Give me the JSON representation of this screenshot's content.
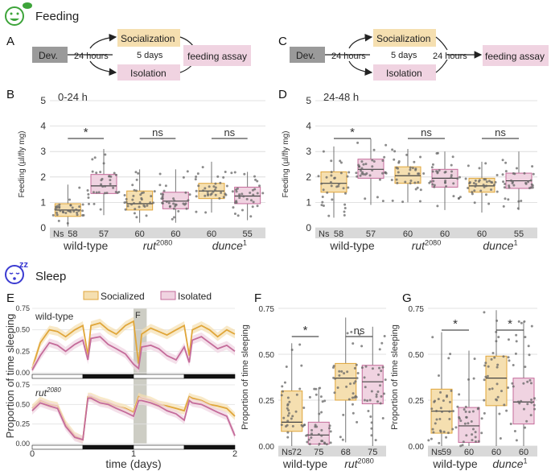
{
  "sections": {
    "feeding": "Feeding",
    "sleep": "Sleep"
  },
  "panels": {
    "A": "A",
    "B": "B",
    "C": "C",
    "D": "D",
    "E": "E",
    "F": "F",
    "G": "G"
  },
  "colors": {
    "socialized_fill": "#f5dfb0",
    "socialized_line": "#e0a63a",
    "isolated_fill": "#f0d3e1",
    "isolated_line": "#c46b9a",
    "dev_box": "#9a9a9a",
    "grey_band": "#d9d9d9"
  },
  "flow_A": {
    "dev": "Dev.",
    "socialization": "Socialization",
    "isolation": "Isolation",
    "hours": "24 hours",
    "days": "5 days",
    "assay": "feeding assay"
  },
  "flow_C": {
    "dev": "Dev.",
    "socialization": "Socialization",
    "isolation": "Isolation",
    "hours1": "24 hours",
    "days": "5 days",
    "hours2": "24 hours",
    "assay": "feeding assay"
  },
  "legend_E": {
    "socialized": "Socialized",
    "isolated": "Isolated"
  },
  "chart_data": [
    {
      "id": "B",
      "type": "box",
      "title": "0-24 h",
      "ylabel": "Feeding (µl/fly mg)",
      "ylim": [
        0,
        5
      ],
      "yticks": [
        "0",
        "1",
        "2",
        "3",
        "4",
        "5"
      ],
      "groups": [
        "wild-type",
        "rut",
        "dunce"
      ],
      "group_sup": [
        "",
        "2080",
        "1"
      ],
      "n_label": "Ns",
      "n": [
        58,
        57,
        60,
        60,
        60,
        55
      ],
      "boxes": [
        {
          "cond": "socialized",
          "q1": 0.45,
          "med": 0.7,
          "q3": 0.95,
          "lo": 0.05,
          "hi": 1.7
        },
        {
          "cond": "isolated",
          "q1": 1.35,
          "med": 1.65,
          "q3": 2.1,
          "lo": 0.5,
          "hi": 3.1
        },
        {
          "cond": "socialized",
          "q1": 0.7,
          "med": 0.95,
          "q3": 1.45,
          "lo": 0.2,
          "hi": 2.3
        },
        {
          "cond": "isolated",
          "q1": 0.75,
          "med": 1.05,
          "q3": 1.4,
          "lo": 0.2,
          "hi": 2.3
        },
        {
          "cond": "socialized",
          "q1": 1.15,
          "med": 1.45,
          "q3": 1.75,
          "lo": 0.6,
          "hi": 2.6
        },
        {
          "cond": "isolated",
          "q1": 0.95,
          "med": 1.25,
          "q3": 1.6,
          "lo": 0.3,
          "hi": 2.2
        }
      ],
      "sig": [
        "*",
        "ns",
        "ns"
      ]
    },
    {
      "id": "D",
      "type": "box",
      "title": "24-48 h",
      "ylabel": "Feeding (µl/fly mg)",
      "ylim": [
        0,
        5
      ],
      "yticks": [
        "0",
        "1",
        "2",
        "3",
        "4",
        "5"
      ],
      "groups": [
        "wild-type",
        "rut",
        "dunce"
      ],
      "group_sup": [
        "",
        "2080",
        "1"
      ],
      "n_label": "Ns",
      "n": [
        58,
        57,
        60,
        60,
        60,
        55
      ],
      "boxes": [
        {
          "cond": "socialized",
          "q1": 1.4,
          "med": 1.75,
          "q3": 2.2,
          "lo": 0.4,
          "hi": 3.2
        },
        {
          "cond": "isolated",
          "q1": 1.95,
          "med": 2.3,
          "q3": 2.7,
          "lo": 0.9,
          "hi": 3.5
        },
        {
          "cond": "socialized",
          "q1": 1.75,
          "med": 2.05,
          "q3": 2.4,
          "lo": 1.0,
          "hi": 3.1
        },
        {
          "cond": "isolated",
          "q1": 1.6,
          "med": 1.95,
          "q3": 2.3,
          "lo": 0.7,
          "hi": 3.0
        },
        {
          "cond": "socialized",
          "q1": 1.4,
          "med": 1.65,
          "q3": 1.95,
          "lo": 0.6,
          "hi": 2.6
        },
        {
          "cond": "isolated",
          "q1": 1.55,
          "med": 1.85,
          "q3": 2.15,
          "lo": 0.7,
          "hi": 3.0
        }
      ],
      "sig": [
        "*",
        "ns",
        "ns"
      ]
    },
    {
      "id": "E",
      "type": "line",
      "ylabel": "Proportion of time sleeping",
      "xlabel": "time (days)",
      "xlim": [
        0,
        2
      ],
      "xticks": [
        "0",
        "1",
        "2"
      ],
      "ylim": [
        0,
        0.75
      ],
      "yticks": [
        "0.00",
        "0.25",
        "0.50",
        "0.75"
      ],
      "highlight_label": "F",
      "highlight_x": [
        1.0,
        1.13
      ],
      "panels": [
        {
          "label": "wild-type",
          "sup": "",
          "x": [
            0,
            0.08,
            0.17,
            0.25,
            0.33,
            0.42,
            0.5,
            0.55,
            0.58,
            0.67,
            0.75,
            0.83,
            0.92,
            1.0,
            1.05,
            1.08,
            1.17,
            1.25,
            1.33,
            1.42,
            1.5,
            1.55,
            1.58,
            1.67,
            1.75,
            1.83,
            1.92,
            2.0
          ],
          "series": [
            {
              "name": "Socialized",
              "values": [
                0.05,
                0.35,
                0.5,
                0.48,
                0.42,
                0.5,
                0.55,
                0.2,
                0.55,
                0.58,
                0.5,
                0.45,
                0.55,
                0.6,
                0.1,
                0.45,
                0.52,
                0.48,
                0.44,
                0.5,
                0.55,
                0.2,
                0.5,
                0.55,
                0.5,
                0.42,
                0.5,
                0.45
              ]
            },
            {
              "name": "Isolated",
              "values": [
                0.03,
                0.2,
                0.35,
                0.32,
                0.25,
                0.33,
                0.38,
                0.15,
                0.4,
                0.42,
                0.33,
                0.28,
                0.22,
                0.1,
                0.05,
                0.3,
                0.32,
                0.28,
                0.2,
                0.15,
                0.3,
                0.12,
                0.38,
                0.42,
                0.35,
                0.28,
                0.32,
                0.25
              ]
            }
          ]
        },
        {
          "label": "rut",
          "sup": "2080",
          "x": [
            0,
            0.08,
            0.17,
            0.25,
            0.33,
            0.42,
            0.5,
            0.55,
            0.58,
            0.67,
            0.75,
            0.83,
            0.92,
            1.0,
            1.05,
            1.08,
            1.17,
            1.25,
            1.33,
            1.42,
            1.5,
            1.55,
            1.58,
            1.67,
            1.75,
            1.83,
            1.92,
            2.0
          ],
          "series": [
            {
              "name": "Socialized",
              "values": [
                0.45,
                0.55,
                0.5,
                0.48,
                0.25,
                0.1,
                0.05,
                0.6,
                0.6,
                0.55,
                0.52,
                0.48,
                0.45,
                0.4,
                0.6,
                0.58,
                0.55,
                0.5,
                0.48,
                0.45,
                0.42,
                0.6,
                0.58,
                0.55,
                0.5,
                0.48,
                0.45,
                0.35
              ]
            },
            {
              "name": "Isolated",
              "values": [
                0.42,
                0.52,
                0.48,
                0.45,
                0.22,
                0.08,
                0.05,
                0.58,
                0.58,
                0.52,
                0.5,
                0.45,
                0.4,
                0.35,
                0.55,
                0.55,
                0.52,
                0.48,
                0.42,
                0.38,
                0.3,
                0.55,
                0.52,
                0.5,
                0.45,
                0.4,
                0.35,
                0.1
              ]
            }
          ]
        }
      ]
    },
    {
      "id": "F",
      "type": "box",
      "ylabel": "Proportion of time sleeping",
      "ylim": [
        0,
        0.75
      ],
      "yticks": [
        "0.00",
        "0.25",
        "0.50",
        "0.75"
      ],
      "groups": [
        "wild-type",
        "rut"
      ],
      "group_sup": [
        "",
        "2080"
      ],
      "n_label": "Ns",
      "n": [
        72,
        75,
        68,
        75
      ],
      "boxes": [
        {
          "cond": "socialized",
          "q1": 0.08,
          "med": 0.13,
          "q3": 0.3,
          "lo": 0.0,
          "hi": 0.56
        },
        {
          "cond": "isolated",
          "q1": 0.01,
          "med": 0.06,
          "q3": 0.13,
          "lo": 0.0,
          "hi": 0.32
        },
        {
          "cond": "socialized",
          "q1": 0.25,
          "med": 0.37,
          "q3": 0.45,
          "lo": 0.02,
          "hi": 0.7
        },
        {
          "cond": "isolated",
          "q1": 0.23,
          "med": 0.35,
          "q3": 0.44,
          "lo": 0.0,
          "hi": 0.65
        }
      ],
      "sig": [
        "*",
        "ns"
      ]
    },
    {
      "id": "G",
      "type": "box",
      "ylabel": "Proportion of time sleeping",
      "ylim": [
        0,
        0.75
      ],
      "yticks": [
        "0.00",
        "0.25",
        "0.50",
        "0.75"
      ],
      "groups": [
        "wild-type",
        "dunce"
      ],
      "group_sup": [
        "",
        "1"
      ],
      "n_label": "Ns",
      "n": [
        59,
        60,
        60,
        60
      ],
      "boxes": [
        {
          "cond": "socialized",
          "q1": 0.07,
          "med": 0.19,
          "q3": 0.31,
          "lo": 0.0,
          "hi": 0.62
        },
        {
          "cond": "isolated",
          "q1": 0.02,
          "med": 0.11,
          "q3": 0.21,
          "lo": 0.0,
          "hi": 0.52
        },
        {
          "cond": "socialized",
          "q1": 0.22,
          "med": 0.37,
          "q3": 0.49,
          "lo": 0.0,
          "hi": 0.74
        },
        {
          "cond": "isolated",
          "q1": 0.12,
          "med": 0.24,
          "q3": 0.37,
          "lo": 0.0,
          "hi": 0.68
        }
      ],
      "sig": [
        "*",
        "*"
      ]
    }
  ]
}
